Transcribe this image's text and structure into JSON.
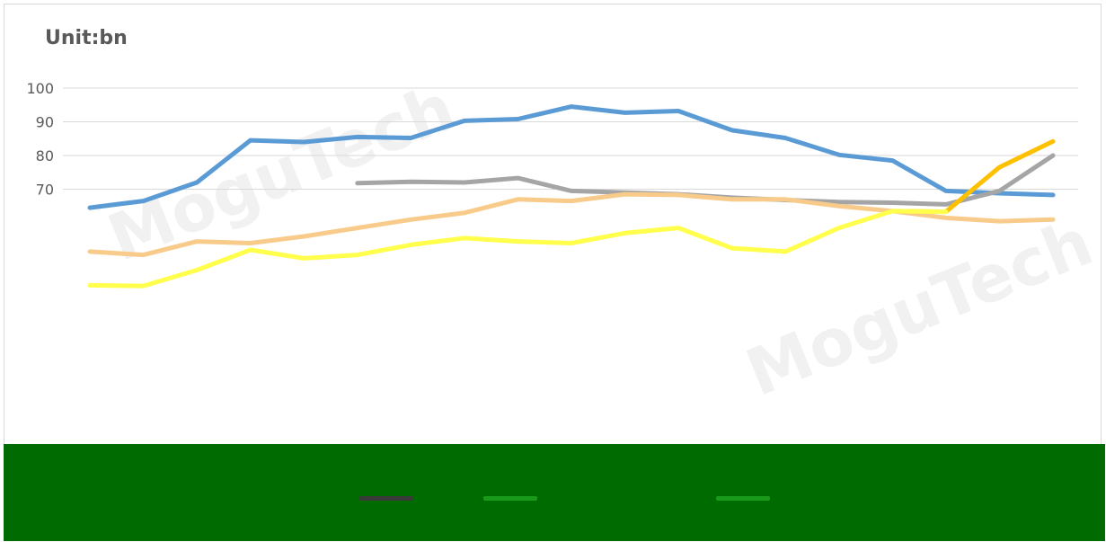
{
  "unit_label": "Unit:bn",
  "watermark": [
    "MoguTech",
    "MoguTech"
  ],
  "chart_data": {
    "type": "line",
    "ylim": [
      20,
      100
    ],
    "yticks": [
      100,
      90,
      80,
      70
    ],
    "x": [
      1,
      2,
      3,
      4,
      5,
      6,
      7,
      8,
      9,
      10,
      11,
      12,
      13,
      14,
      15,
      16,
      17,
      18,
      19
    ],
    "grid": true,
    "legend": "bottom",
    "series": [
      {
        "color": "#5b9bd5",
        "values": [
          64.5,
          66.5,
          72,
          84.5,
          84,
          85.5,
          85.2,
          90.3,
          90.8,
          94.5,
          92.7,
          93.2,
          87.5,
          85.2,
          80.2,
          78.5,
          69.5,
          68.8,
          68.3
        ]
      },
      {
        "color": "#a5a5a5",
        "values": [
          null,
          null,
          null,
          null,
          null,
          71.8,
          72.2,
          72.0,
          73.3,
          69.5,
          69.0,
          68.5,
          67.5,
          66.8,
          66.2,
          66.0,
          65.5,
          69.5,
          80.0
        ]
      },
      {
        "color": "#ffc000",
        "values": [
          null,
          null,
          null,
          null,
          null,
          null,
          null,
          null,
          null,
          null,
          null,
          null,
          null,
          null,
          null,
          63.5,
          63.3,
          76.5,
          84.2
        ]
      },
      {
        "color": "#f8cb8a",
        "values": [
          51.5,
          50.5,
          54.5,
          54.0,
          56.0,
          58.5,
          61.0,
          63.0,
          67.0,
          66.5,
          68.5,
          68.3,
          67.0,
          67.0,
          65.0,
          63.5,
          61.5,
          60.5,
          61.0
        ]
      },
      {
        "color": "#ffff4c",
        "values": [
          41.5,
          41.3,
          46.0,
          52.0,
          49.5,
          50.5,
          53.5,
          55.5,
          54.5,
          54.0,
          57.0,
          58.5,
          52.5,
          51.5,
          58.5,
          63.5,
          63.3,
          null,
          null
        ]
      }
    ]
  },
  "legend_colors": [
    "#3a3a3a",
    "#1a9a1a",
    "#1a9a1a"
  ]
}
